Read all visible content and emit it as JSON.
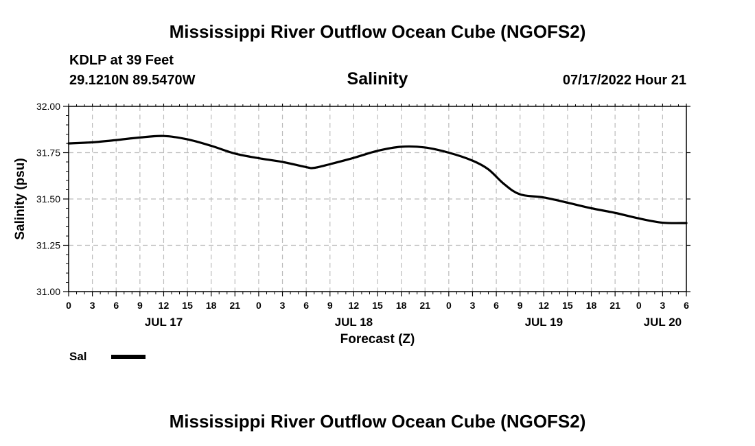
{
  "header": {
    "title": "Mississippi River Outflow Ocean Cube (NGOFS2)",
    "station": "KDLP at 39 Feet",
    "coords": "29.1210N  89.5470W",
    "chart_title": "Salinity",
    "run_time": "07/17/2022 Hour 21"
  },
  "footer": {
    "title": "Mississippi River Outflow Ocean Cube (NGOFS2)"
  },
  "legend": {
    "label": "Sal",
    "color": "#000000"
  },
  "chart_data": {
    "type": "line",
    "title": "Salinity",
    "xlabel": "Forecast (Z)",
    "ylabel": "Salinity (psu)",
    "ylim": [
      31.0,
      32.0
    ],
    "yticks": [
      "31.00",
      "31.25",
      "31.50",
      "31.75",
      "32.00"
    ],
    "xlim": [
      0,
      78
    ],
    "x_unit": "hours from 00Z Jul 17",
    "hour_tick_labels": [
      "0",
      "3",
      "6",
      "9",
      "12",
      "15",
      "18",
      "21",
      "0",
      "3",
      "6",
      "9",
      "12",
      "15",
      "18",
      "21",
      "0",
      "3",
      "6",
      "9",
      "12",
      "15",
      "18",
      "21",
      "0",
      "3",
      "6"
    ],
    "day_labels": [
      {
        "label": "JUL 17",
        "x": 12
      },
      {
        "label": "JUL 18",
        "x": 36
      },
      {
        "label": "JUL 19",
        "x": 60
      },
      {
        "label": "JUL 20",
        "x": 75
      }
    ],
    "grid": true,
    "series": [
      {
        "name": "Sal",
        "color": "#000000",
        "x": [
          0,
          3,
          6,
          9,
          12,
          15,
          18,
          21,
          24,
          27,
          30,
          31,
          33,
          36,
          39,
          42,
          45,
          48,
          51,
          53,
          55,
          57,
          60,
          63,
          66,
          69,
          72,
          75,
          78
        ],
        "y": [
          31.8,
          31.806,
          31.818,
          31.832,
          31.84,
          31.822,
          31.787,
          31.745,
          31.72,
          31.7,
          31.672,
          31.668,
          31.688,
          31.722,
          31.76,
          31.782,
          31.778,
          31.75,
          31.707,
          31.66,
          31.58,
          31.525,
          31.508,
          31.48,
          31.45,
          31.425,
          31.395,
          31.372,
          31.37
        ]
      }
    ]
  }
}
